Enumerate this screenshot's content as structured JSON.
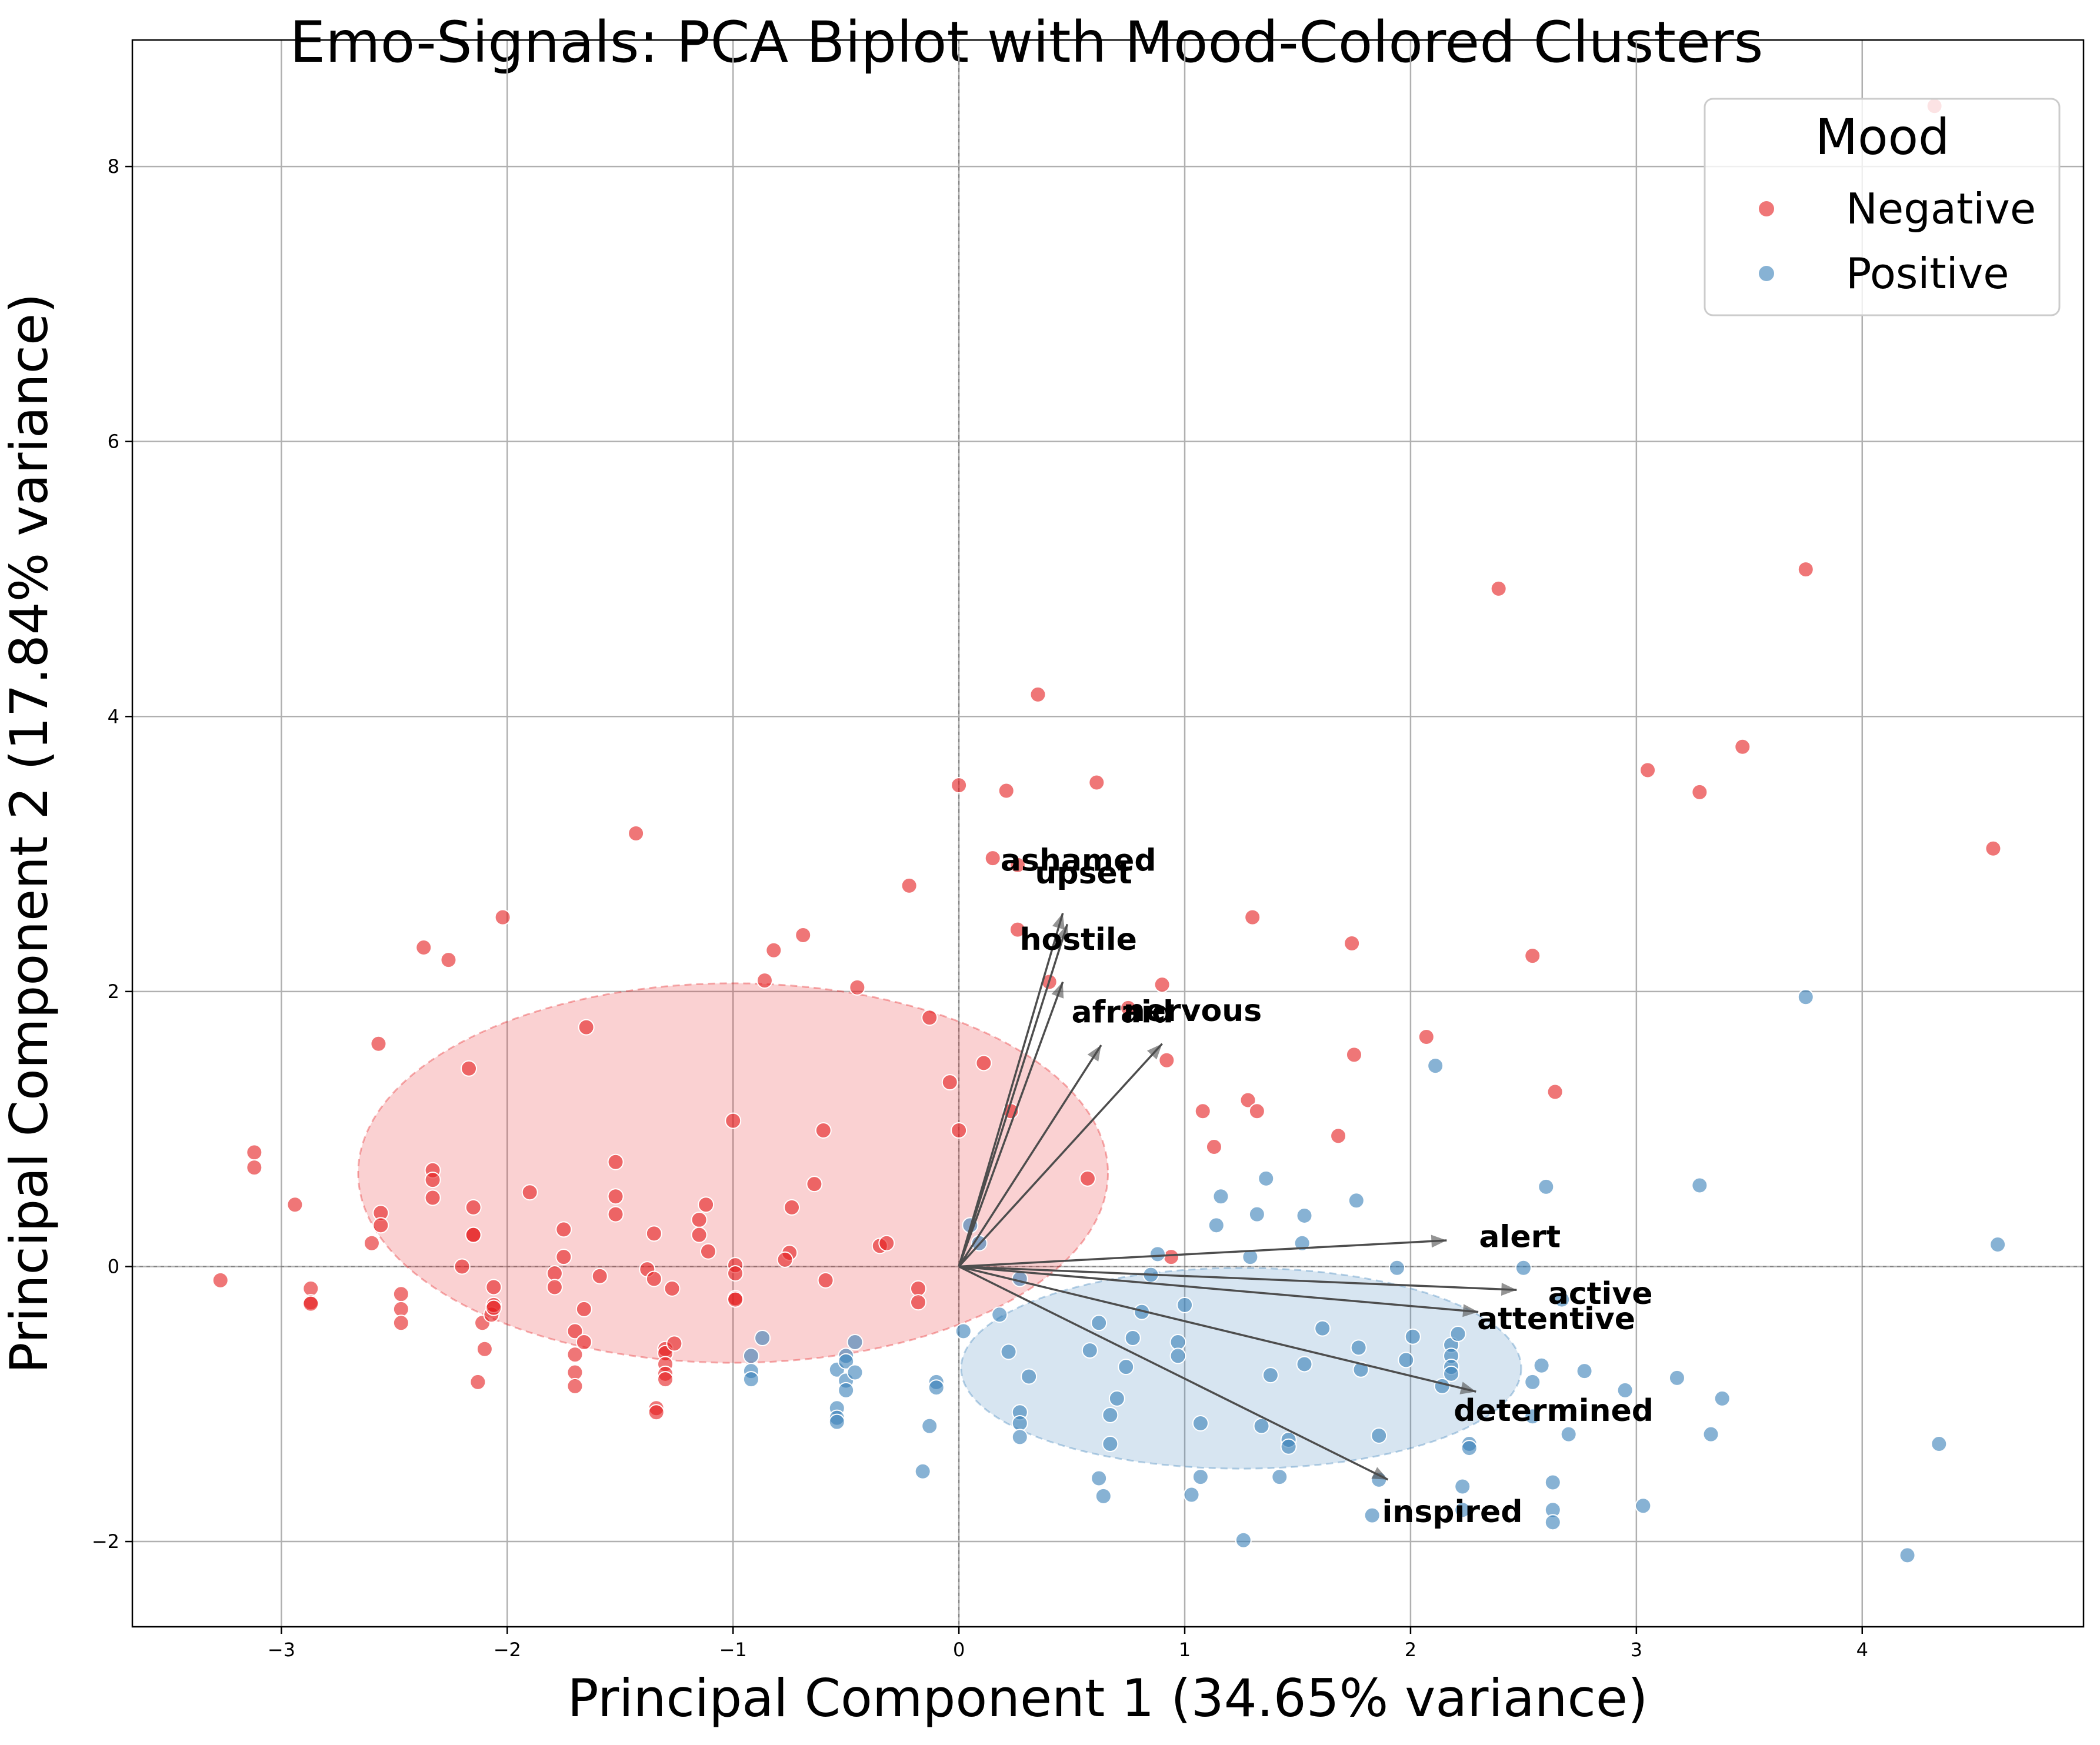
{
  "chart_data": {
    "type": "scatter",
    "title": "Emo-Signals: PCA Biplot with Mood-Colored Clusters",
    "xlabel": "Principal Component 1 (34.65% variance)",
    "ylabel": "Principal Component 2 (17.84% variance)",
    "xlim": [
      -3.66,
      4.98
    ],
    "ylim": [
      -2.62,
      8.92
    ],
    "xticks": [
      -3,
      -2,
      -1,
      0,
      1,
      2,
      3,
      4
    ],
    "xtick_labels": [
      "−3",
      "−2",
      "−1",
      "0",
      "1",
      "2",
      "3",
      "4"
    ],
    "yticks": [
      -2,
      0,
      2,
      4,
      6,
      8
    ],
    "ytick_labels": [
      "−2",
      "0",
      "2",
      "4",
      "6",
      "8"
    ],
    "grid": true,
    "legend": {
      "title": "Mood",
      "placement": "top-right"
    },
    "colors": {
      "Negative": "#e41a1c",
      "Positive": "#377eb8"
    },
    "series": [
      {
        "name": "Negative",
        "points": [
          [
            -3.27,
            -0.1
          ],
          [
            -3.12,
            0.83
          ],
          [
            -3.12,
            0.72
          ],
          [
            -2.94,
            0.45
          ],
          [
            -2.87,
            -0.16
          ],
          [
            -2.87,
            -0.26
          ],
          [
            -2.87,
            -0.27
          ],
          [
            -2.57,
            1.62
          ],
          [
            -2.56,
            0.39
          ],
          [
            -2.56,
            0.3
          ],
          [
            -2.6,
            0.17
          ],
          [
            -2.47,
            -0.2
          ],
          [
            -2.47,
            -0.31
          ],
          [
            -2.47,
            -0.41
          ],
          [
            -2.37,
            2.32
          ],
          [
            -2.33,
            0.7
          ],
          [
            -2.33,
            0.63
          ],
          [
            -2.33,
            0.5
          ],
          [
            -2.26,
            2.23
          ],
          [
            -2.2,
            0.0
          ],
          [
            -2.17,
            1.44
          ],
          [
            -2.15,
            0.43
          ],
          [
            -2.15,
            0.23
          ],
          [
            -2.15,
            0.23
          ],
          [
            -2.13,
            -0.84
          ],
          [
            -2.11,
            -0.41
          ],
          [
            -2.1,
            -0.6
          ],
          [
            -2.07,
            -0.35
          ],
          [
            -2.06,
            -0.28
          ],
          [
            -2.06,
            -0.3
          ],
          [
            -2.06,
            -0.15
          ],
          [
            -2.02,
            2.54
          ],
          [
            -1.9,
            0.54
          ],
          [
            -1.79,
            -0.05
          ],
          [
            -1.79,
            -0.15
          ],
          [
            -1.75,
            0.27
          ],
          [
            -1.75,
            0.07
          ],
          [
            -1.7,
            -0.47
          ],
          [
            -1.7,
            -0.64
          ],
          [
            -1.7,
            -0.77
          ],
          [
            -1.7,
            -0.87
          ],
          [
            -1.65,
            1.74
          ],
          [
            -1.66,
            -0.31
          ],
          [
            -1.66,
            -0.55
          ],
          [
            -1.59,
            -0.07
          ],
          [
            -1.52,
            0.76
          ],
          [
            -1.52,
            0.51
          ],
          [
            -1.52,
            0.38
          ],
          [
            -1.43,
            3.15
          ],
          [
            -1.38,
            -0.02
          ],
          [
            -1.35,
            0.24
          ],
          [
            -1.35,
            -0.09
          ],
          [
            -1.34,
            -1.03
          ],
          [
            -1.34,
            -1.06
          ],
          [
            -1.3,
            -0.6
          ],
          [
            -1.3,
            -0.63
          ],
          [
            -1.3,
            -0.71
          ],
          [
            -1.3,
            -0.78
          ],
          [
            -1.3,
            -0.82
          ],
          [
            -1.27,
            -0.16
          ],
          [
            -1.26,
            -0.56
          ],
          [
            -1.15,
            0.34
          ],
          [
            -1.15,
            0.23
          ],
          [
            -1.12,
            0.45
          ],
          [
            -1.11,
            0.11
          ],
          [
            -1.0,
            1.06
          ],
          [
            -0.99,
            0.01
          ],
          [
            -0.99,
            -0.05
          ],
          [
            -0.99,
            -0.23
          ],
          [
            -0.99,
            -0.24
          ],
          [
            -0.86,
            2.08
          ],
          [
            -0.82,
            2.3
          ],
          [
            -0.74,
            0.43
          ],
          [
            -0.75,
            0.1
          ],
          [
            -0.77,
            0.05
          ],
          [
            -0.69,
            2.41
          ],
          [
            -0.64,
            0.6
          ],
          [
            -0.6,
            0.99
          ],
          [
            -0.59,
            -0.1
          ],
          [
            -0.45,
            2.03
          ],
          [
            -0.35,
            0.15
          ],
          [
            -0.32,
            0.17
          ],
          [
            -0.22,
            2.77
          ],
          [
            -0.18,
            -0.16
          ],
          [
            -0.18,
            -0.26
          ],
          [
            -0.13,
            1.81
          ],
          [
            -0.04,
            1.34
          ],
          [
            0.0,
            3.5
          ],
          [
            0.0,
            0.99
          ],
          [
            0.11,
            1.48
          ],
          [
            0.15,
            2.97
          ],
          [
            0.21,
            3.46
          ],
          [
            0.23,
            1.13
          ],
          [
            0.26,
            2.92
          ],
          [
            0.26,
            2.45
          ],
          [
            0.35,
            4.16
          ],
          [
            0.4,
            2.07
          ],
          [
            0.61,
            3.52
          ],
          [
            0.57,
            0.64
          ],
          [
            0.75,
            1.88
          ],
          [
            0.9,
            2.05
          ],
          [
            0.92,
            1.5
          ],
          [
            0.94,
            0.07
          ],
          [
            1.08,
            1.13
          ],
          [
            1.13,
            0.87
          ],
          [
            1.28,
            1.21
          ],
          [
            1.3,
            2.54
          ],
          [
            1.32,
            1.13
          ],
          [
            1.68,
            0.95
          ],
          [
            1.74,
            2.35
          ],
          [
            1.75,
            1.54
          ],
          [
            2.07,
            1.67
          ],
          [
            2.39,
            4.93
          ],
          [
            2.54,
            2.26
          ],
          [
            2.64,
            1.27
          ],
          [
            3.05,
            3.61
          ],
          [
            3.28,
            3.45
          ],
          [
            3.47,
            3.78
          ],
          [
            3.75,
            5.07
          ],
          [
            4.32,
            8.44
          ],
          [
            4.58,
            3.04
          ]
        ]
      },
      {
        "name": "Positive",
        "points": [
          [
            -0.92,
            -0.65
          ],
          [
            -0.92,
            -0.76
          ],
          [
            -0.92,
            -0.82
          ],
          [
            -0.87,
            -0.52
          ],
          [
            -0.54,
            -0.75
          ],
          [
            -0.54,
            -1.03
          ],
          [
            -0.54,
            -1.1
          ],
          [
            -0.54,
            -1.13
          ],
          [
            -0.5,
            -0.65
          ],
          [
            -0.5,
            -0.69
          ],
          [
            -0.5,
            -0.83
          ],
          [
            -0.5,
            -0.9
          ],
          [
            -0.46,
            -0.55
          ],
          [
            -0.46,
            -0.77
          ],
          [
            -0.16,
            -1.49
          ],
          [
            -0.13,
            -1.16
          ],
          [
            -0.1,
            -0.84
          ],
          [
            -0.1,
            -0.88
          ],
          [
            0.02,
            -0.47
          ],
          [
            0.05,
            0.3
          ],
          [
            0.09,
            0.17
          ],
          [
            0.18,
            -0.35
          ],
          [
            0.22,
            -0.62
          ],
          [
            0.27,
            -0.09
          ],
          [
            0.27,
            -1.06
          ],
          [
            0.27,
            -1.14
          ],
          [
            0.27,
            -1.24
          ],
          [
            0.31,
            -0.8
          ],
          [
            0.58,
            -0.61
          ],
          [
            0.62,
            -1.54
          ],
          [
            0.62,
            -0.41
          ],
          [
            0.64,
            -1.67
          ],
          [
            0.67,
            -1.08
          ],
          [
            0.67,
            -1.29
          ],
          [
            0.7,
            -0.96
          ],
          [
            0.74,
            -0.73
          ],
          [
            0.77,
            -0.52
          ],
          [
            0.81,
            -0.33
          ],
          [
            0.85,
            -0.06
          ],
          [
            0.88,
            0.09
          ],
          [
            0.97,
            -0.55
          ],
          [
            0.97,
            -0.65
          ],
          [
            1.0,
            -0.28
          ],
          [
            1.03,
            -1.66
          ],
          [
            1.07,
            -1.14
          ],
          [
            1.07,
            -1.53
          ],
          [
            1.14,
            0.3
          ],
          [
            1.16,
            0.51
          ],
          [
            1.26,
            -1.99
          ],
          [
            1.29,
            0.07
          ],
          [
            1.32,
            0.38
          ],
          [
            1.36,
            0.64
          ],
          [
            1.34,
            -1.16
          ],
          [
            1.38,
            -0.79
          ],
          [
            1.42,
            -1.53
          ],
          [
            1.46,
            -1.26
          ],
          [
            1.46,
            -1.31
          ],
          [
            1.52,
            0.17
          ],
          [
            1.53,
            0.37
          ],
          [
            1.53,
            -0.71
          ],
          [
            1.61,
            -0.45
          ],
          [
            1.76,
            0.48
          ],
          [
            1.77,
            -0.59
          ],
          [
            1.78,
            -0.75
          ],
          [
            1.83,
            -1.81
          ],
          [
            1.86,
            -1.23
          ],
          [
            1.86,
            -1.55
          ],
          [
            1.94,
            -0.01
          ],
          [
            1.98,
            -0.68
          ],
          [
            2.01,
            -0.51
          ],
          [
            2.11,
            1.46
          ],
          [
            2.14,
            -0.87
          ],
          [
            2.18,
            -0.57
          ],
          [
            2.18,
            -0.65
          ],
          [
            2.18,
            -0.73
          ],
          [
            2.18,
            -0.78
          ],
          [
            2.21,
            -0.49
          ],
          [
            2.23,
            -1.6
          ],
          [
            2.23,
            -1.77
          ],
          [
            2.26,
            -1.29
          ],
          [
            2.26,
            -1.32
          ],
          [
            2.5,
            -0.01
          ],
          [
            2.54,
            -0.84
          ],
          [
            2.54,
            -1.09
          ],
          [
            2.58,
            -0.72
          ],
          [
            2.6,
            0.58
          ],
          [
            2.63,
            -1.57
          ],
          [
            2.63,
            -1.77
          ],
          [
            2.63,
            -1.86
          ],
          [
            2.67,
            -0.24
          ],
          [
            2.7,
            -1.22
          ],
          [
            2.77,
            -0.76
          ],
          [
            2.95,
            -0.9
          ],
          [
            3.03,
            -1.74
          ],
          [
            3.18,
            -0.81
          ],
          [
            3.28,
            0.59
          ],
          [
            3.33,
            -1.22
          ],
          [
            3.38,
            -0.96
          ],
          [
            3.75,
            1.96
          ],
          [
            4.2,
            -2.1
          ],
          [
            4.34,
            -1.29
          ],
          [
            4.6,
            0.16
          ]
        ]
      }
    ],
    "ellipses": [
      {
        "name": "Negative",
        "center": [
          -1.0,
          0.68
        ],
        "width": 3.32,
        "height": 2.76,
        "color": "#e41a1c"
      },
      {
        "name": "Positive",
        "center": [
          1.25,
          -0.74
        ],
        "width": 2.48,
        "height": 1.46,
        "color": "#377eb8"
      }
    ],
    "loadings": [
      {
        "name": "ashamed",
        "x": 0.46,
        "y": 2.57
      },
      {
        "name": "upset",
        "x": 0.48,
        "y": 2.49
      },
      {
        "name": "hostile",
        "x": 0.46,
        "y": 2.07
      },
      {
        "name": "afraid",
        "x": 0.63,
        "y": 1.61
      },
      {
        "name": "nervous",
        "x": 0.9,
        "y": 1.62
      },
      {
        "name": "alert",
        "x": 2.16,
        "y": 0.19
      },
      {
        "name": "active",
        "x": 2.47,
        "y": -0.17
      },
      {
        "name": "attentive",
        "x": 2.3,
        "y": -0.33
      },
      {
        "name": "determined",
        "x": 2.29,
        "y": -0.91
      },
      {
        "name": "inspired",
        "x": 1.9,
        "y": -1.55
      }
    ]
  }
}
